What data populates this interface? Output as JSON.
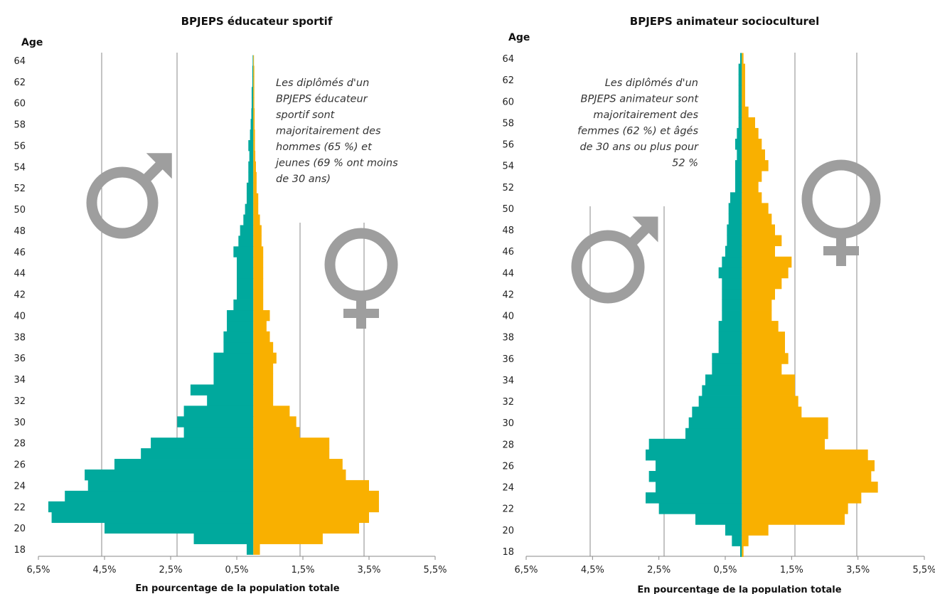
{
  "colors": {
    "male": "#00A99D",
    "female": "#F9B000",
    "symbol": "#9E9E9E",
    "grid": "#8A8A8A"
  },
  "chart_data": [
    {
      "type": "bar",
      "orientation": "horizontal-population-pyramid",
      "title": "BPJEPS éducateur sportif",
      "ylabel": "Age",
      "xlabel": "En pourcentage de la population totale",
      "x_tick_labels": [
        "6,5%",
        "4,5%",
        "2,5%",
        "0,5%",
        "1,5%",
        "3,5%",
        "5,5%"
      ],
      "x_tick_values": [
        -6.5,
        -4.5,
        -2.5,
        -0.5,
        1.5,
        3.5,
        5.5
      ],
      "xlim": [
        -6.5,
        5.5
      ],
      "y_tick_labels": [
        "64",
        "62",
        "60",
        "58",
        "56",
        "54",
        "52",
        "50",
        "48",
        "46",
        "44",
        "42",
        "40",
        "38",
        "36",
        "34",
        "32",
        "30",
        "28",
        "26",
        "24",
        "22",
        "20",
        "18"
      ],
      "ages": [
        18,
        19,
        20,
        21,
        22,
        23,
        24,
        25,
        26,
        27,
        28,
        29,
        30,
        31,
        32,
        33,
        34,
        35,
        36,
        37,
        38,
        39,
        40,
        41,
        42,
        43,
        44,
        45,
        46,
        47,
        48,
        49,
        50,
        51,
        52,
        53,
        54,
        55,
        56,
        57,
        58,
        59,
        60,
        61,
        62,
        63,
        64
      ],
      "grid": "vertical",
      "annotation": "Les diplômés d'un BPJEPS éducateur sportif sont majoritairement des hommes (65 %) et jeunes (69 % ont moins de 30 ans)",
      "series": [
        {
          "values": [
            0.2,
            1.8,
            4.5,
            6.1,
            6.2,
            5.7,
            5.0,
            5.1,
            4.2,
            3.4,
            3.1,
            2.1,
            2.3,
            2.1,
            1.4,
            1.9,
            1.2,
            1.2,
            1.2,
            0.9,
            0.9,
            0.8,
            0.8,
            0.6,
            0.5,
            0.5,
            0.5,
            0.5,
            0.6,
            0.45,
            0.4,
            0.3,
            0.25,
            0.2,
            0.2,
            0.15,
            0.15,
            0.12,
            0.15,
            0.1,
            0.08,
            0.06,
            0.05,
            0.05,
            0.03,
            0.03,
            0.02
          ]
        },
        {
          "values": [
            0.2,
            2.1,
            3.2,
            3.5,
            3.8,
            3.8,
            3.5,
            2.8,
            2.7,
            2.3,
            2.3,
            1.4,
            1.3,
            1.1,
            0.6,
            0.6,
            0.6,
            0.6,
            0.7,
            0.6,
            0.5,
            0.4,
            0.5,
            0.3,
            0.3,
            0.3,
            0.3,
            0.3,
            0.3,
            0.25,
            0.25,
            0.2,
            0.15,
            0.15,
            0.1,
            0.1,
            0.08,
            0.06,
            0.05,
            0.05,
            0.04,
            0.04,
            0.03,
            0.03,
            0.03,
            0.03,
            0.02
          ]
        }
      ]
    },
    {
      "type": "bar",
      "orientation": "horizontal-population-pyramid",
      "title": "BPJEPS animateur socioculturel",
      "ylabel": "Age",
      "xlabel": "En pourcentage de la population totale",
      "x_tick_labels": [
        "6,5%",
        "4,5%",
        "2,5%",
        "0,5%",
        "1,5%",
        "3,5%",
        "5,5%"
      ],
      "x_tick_values": [
        -6.5,
        -4.5,
        -2.5,
        -0.5,
        1.5,
        3.5,
        5.5
      ],
      "xlim": [
        -6.5,
        5.5
      ],
      "y_tick_labels": [
        "64",
        "62",
        "60",
        "58",
        "56",
        "54",
        "52",
        "50",
        "48",
        "46",
        "44",
        "42",
        "40",
        "38",
        "36",
        "34",
        "32",
        "30",
        "28",
        "26",
        "24",
        "22",
        "20",
        "18"
      ],
      "ages": [
        18,
        19,
        20,
        21,
        22,
        23,
        24,
        25,
        26,
        27,
        28,
        29,
        30,
        31,
        32,
        33,
        34,
        35,
        36,
        37,
        38,
        39,
        40,
        41,
        42,
        43,
        44,
        45,
        46,
        47,
        48,
        49,
        50,
        51,
        52,
        53,
        54,
        55,
        56,
        57,
        58,
        59,
        60,
        61,
        62,
        63,
        64
      ],
      "grid": "vertical",
      "annotation": "Les diplômés d'un BPJEPS animateur sont majoritairement des femmes (62 %) et âgés de 30 ans ou plus pour 52 %",
      "series": [
        {
          "values": [
            0.05,
            0.3,
            0.5,
            1.4,
            2.5,
            2.9,
            2.6,
            2.8,
            2.6,
            2.9,
            2.8,
            1.7,
            1.6,
            1.5,
            1.3,
            1.2,
            1.1,
            0.9,
            0.9,
            0.7,
            0.7,
            0.7,
            0.6,
            0.6,
            0.6,
            0.6,
            0.7,
            0.6,
            0.5,
            0.45,
            0.45,
            0.4,
            0.4,
            0.35,
            0.2,
            0.2,
            0.2,
            0.15,
            0.2,
            0.15,
            0.1,
            0.1,
            0.1,
            0.1,
            0.1,
            0.1,
            0.05
          ]
        },
        {
          "values": [
            0.05,
            0.2,
            0.8,
            3.1,
            3.2,
            3.6,
            4.1,
            3.9,
            4.0,
            3.8,
            2.5,
            2.6,
            2.6,
            1.8,
            1.7,
            1.6,
            1.6,
            1.2,
            1.4,
            1.3,
            1.3,
            1.1,
            0.9,
            0.9,
            1.0,
            1.2,
            1.4,
            1.5,
            1.0,
            1.2,
            1.0,
            0.9,
            0.8,
            0.6,
            0.5,
            0.6,
            0.8,
            0.7,
            0.6,
            0.5,
            0.4,
            0.2,
            0.1,
            0.1,
            0.1,
            0.1,
            0.05
          ]
        }
      ]
    }
  ]
}
